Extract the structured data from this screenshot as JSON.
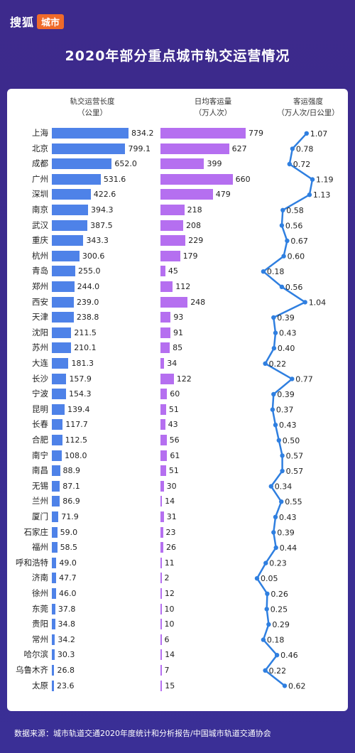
{
  "brand": {
    "name": "搜狐",
    "tag": "城市"
  },
  "title": "2020年部分重点城市轨交运营情况",
  "footer": "数据来源：城市轨道交通2020年度统计和分析报告/中国城市轨道交通协会",
  "colors": {
    "length_bar": "#4e82e8",
    "passenger_bar": "#b56ff0",
    "intensity_line": "#2f7fe0",
    "background": "#3d2a8c"
  },
  "chart_data": {
    "type": "bar",
    "title": "2020年部分重点城市轨交运营情况",
    "categories": [
      "上海",
      "北京",
      "成都",
      "广州",
      "深圳",
      "南京",
      "武汉",
      "重庆",
      "杭州",
      "青岛",
      "郑州",
      "西安",
      "天津",
      "沈阳",
      "苏州",
      "大连",
      "长沙",
      "宁波",
      "昆明",
      "长春",
      "合肥",
      "南宁",
      "南昌",
      "无锡",
      "兰州",
      "厦门",
      "石家庄",
      "福州",
      "呼和浩特",
      "济南",
      "徐州",
      "东莞",
      "贵阳",
      "常州",
      "哈尔滨",
      "乌鲁木齐",
      "太原"
    ],
    "series": [
      {
        "name": "轨交运营长度",
        "unit": "公里",
        "header": [
          "轨交运营长度",
          "（公里）"
        ],
        "type": "bar",
        "values": [
          834.2,
          799.1,
          652.0,
          531.6,
          422.6,
          394.3,
          387.5,
          343.3,
          300.6,
          255.0,
          244.0,
          239.0,
          238.8,
          211.5,
          210.1,
          181.3,
          157.9,
          154.3,
          139.4,
          117.7,
          112.5,
          108.0,
          88.9,
          87.1,
          86.9,
          71.9,
          59.0,
          58.5,
          49.0,
          47.7,
          46.0,
          37.8,
          34.8,
          34.2,
          30.3,
          26.8,
          23.6
        ]
      },
      {
        "name": "日均客运量",
        "unit": "万人次",
        "header": [
          "日均客运量",
          "（万人次）"
        ],
        "type": "bar",
        "values": [
          779,
          627,
          399,
          660,
          479,
          218,
          208,
          229,
          179,
          45,
          112,
          248,
          93,
          91,
          85,
          34,
          122,
          60,
          51,
          43,
          56,
          61,
          51,
          30,
          14,
          31,
          23,
          26,
          11,
          2,
          12,
          10,
          10,
          6,
          14,
          7,
          15
        ]
      },
      {
        "name": "客运强度",
        "unit": "万人次/日公里",
        "header": [
          "客运强度",
          "（万人次/日公里）"
        ],
        "type": "line",
        "values": [
          1.07,
          0.78,
          0.72,
          1.19,
          1.13,
          0.58,
          0.56,
          0.67,
          0.6,
          0.18,
          0.56,
          1.04,
          0.39,
          0.43,
          0.4,
          0.22,
          0.77,
          0.39,
          0.37,
          0.43,
          0.5,
          0.57,
          0.57,
          0.34,
          0.55,
          0.43,
          0.39,
          0.44,
          0.23,
          0.05,
          0.26,
          0.25,
          0.29,
          0.18,
          0.46,
          0.22,
          0.62
        ]
      }
    ]
  }
}
